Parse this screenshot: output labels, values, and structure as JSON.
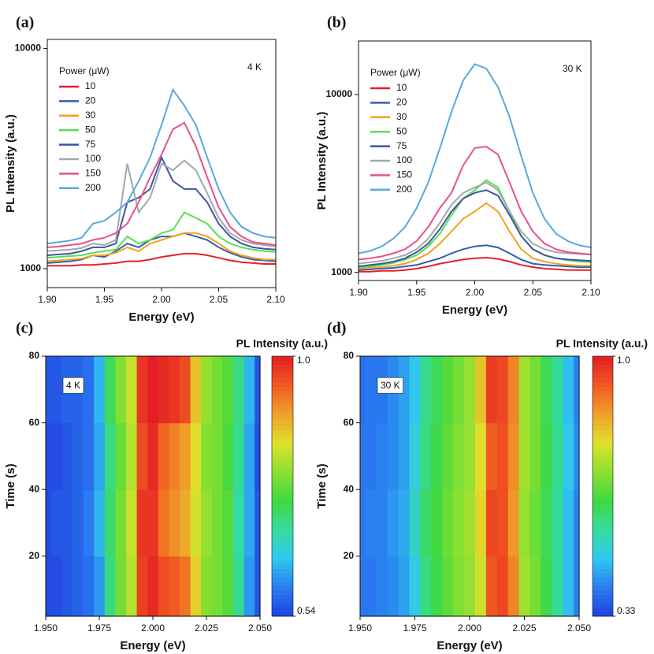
{
  "chart_data": [
    {
      "type": "line",
      "panel_label": "(a)",
      "xlabel": "Energy (eV)",
      "ylabel": "PL Intensity (a.u.)",
      "annotation": "4 K",
      "log": true,
      "legend_title": "Power (μW)",
      "xlim": [
        1.9,
        2.1
      ],
      "xticks": [
        {
          "value": 1.9,
          "label": "1.90"
        },
        1.95,
        {
          "value": 2.0,
          "label": "2.00"
        },
        2.05,
        {
          "value": 2.1,
          "label": "2.10"
        }
      ],
      "ylim": [
        820,
        11000
      ],
      "yticks": [
        1000,
        10000
      ],
      "x": [
        1.9,
        1.91,
        1.92,
        1.93,
        1.94,
        1.95,
        1.96,
        1.97,
        1.98,
        1.99,
        2.0,
        2.01,
        2.02,
        2.03,
        2.04,
        2.05,
        2.06,
        2.07,
        2.08,
        2.09,
        2.1
      ],
      "series": [
        {
          "name": "10",
          "color": "#e8202a",
          "values": [
            1030,
            1030,
            1030,
            1040,
            1040,
            1050,
            1060,
            1080,
            1080,
            1100,
            1130,
            1150,
            1170,
            1170,
            1150,
            1120,
            1090,
            1070,
            1060,
            1050,
            1050
          ]
        },
        {
          "name": "20",
          "color": "#2f5fb0",
          "values": [
            1060,
            1070,
            1080,
            1100,
            1150,
            1130,
            1200,
            1300,
            1250,
            1350,
            1400,
            1400,
            1450,
            1400,
            1350,
            1250,
            1180,
            1130,
            1100,
            1090,
            1080
          ]
        },
        {
          "name": "30",
          "color": "#f5a020",
          "values": [
            1080,
            1090,
            1100,
            1110,
            1150,
            1150,
            1180,
            1250,
            1200,
            1300,
            1350,
            1400,
            1450,
            1450,
            1400,
            1300,
            1200,
            1150,
            1120,
            1100,
            1100
          ]
        },
        {
          "name": "50",
          "color": "#55e050",
          "values": [
            1120,
            1130,
            1140,
            1150,
            1180,
            1200,
            1220,
            1400,
            1300,
            1350,
            1450,
            1500,
            1800,
            1700,
            1600,
            1400,
            1300,
            1250,
            1220,
            1200,
            1190
          ]
        },
        {
          "name": "75",
          "color": "#4055a0",
          "values": [
            1150,
            1160,
            1170,
            1200,
            1250,
            1250,
            1300,
            2000,
            2100,
            2300,
            3200,
            2500,
            2300,
            2300,
            2000,
            1600,
            1400,
            1300,
            1250,
            1230,
            1220
          ]
        },
        {
          "name": "100",
          "color": "#a0aaa8",
          "values": [
            1200,
            1210,
            1220,
            1240,
            1300,
            1280,
            1350,
            3000,
            1800,
            2100,
            3000,
            2800,
            3100,
            2800,
            2200,
            1700,
            1450,
            1350,
            1300,
            1280,
            1260
          ]
        },
        {
          "name": "150",
          "color": "#e8508a",
          "values": [
            1250,
            1260,
            1280,
            1300,
            1350,
            1380,
            1450,
            1600,
            2000,
            2600,
            3300,
            4300,
            4600,
            3600,
            2600,
            1900,
            1550,
            1400,
            1320,
            1300,
            1280
          ]
        },
        {
          "name": "200",
          "color": "#5aa8dc",
          "values": [
            1300,
            1320,
            1340,
            1380,
            1600,
            1650,
            1800,
            2000,
            2500,
            3200,
            4500,
            6500,
            5500,
            4500,
            3200,
            2300,
            1800,
            1550,
            1450,
            1400,
            1380
          ]
        }
      ]
    },
    {
      "type": "line",
      "panel_label": "(b)",
      "xlabel": "Energy (eV)",
      "ylabel": "PL Intensity (a.u.)",
      "annotation": "30 K",
      "log": true,
      "legend_title": "Power (μW)",
      "xlim": [
        1.9,
        2.1
      ],
      "xticks": [
        {
          "value": 1.9,
          "label": "1.90"
        },
        1.95,
        {
          "value": 2.0,
          "label": "2.00"
        },
        2.05,
        {
          "value": 2.1,
          "label": "2.10"
        }
      ],
      "ylim": [
        900,
        20000
      ],
      "yticks": [
        1000,
        10000
      ],
      "x": [
        1.9,
        1.91,
        1.92,
        1.93,
        1.94,
        1.95,
        1.96,
        1.97,
        1.98,
        1.99,
        2.0,
        2.01,
        2.02,
        2.03,
        2.04,
        2.05,
        2.06,
        2.07,
        2.08,
        2.09,
        2.1
      ],
      "series": [
        {
          "name": "10",
          "color": "#e8202a",
          "values": [
            1010,
            1010,
            1020,
            1020,
            1030,
            1050,
            1080,
            1120,
            1150,
            1180,
            1200,
            1210,
            1190,
            1150,
            1100,
            1070,
            1050,
            1040,
            1030,
            1030,
            1030
          ]
        },
        {
          "name": "20",
          "color": "#2f5fb0",
          "values": [
            1030,
            1040,
            1050,
            1060,
            1080,
            1100,
            1150,
            1200,
            1280,
            1350,
            1400,
            1420,
            1380,
            1280,
            1180,
            1120,
            1100,
            1090,
            1080,
            1070,
            1070
          ]
        },
        {
          "name": "30",
          "color": "#f5a020",
          "values": [
            1050,
            1060,
            1070,
            1090,
            1120,
            1180,
            1280,
            1450,
            1700,
            2000,
            2200,
            2450,
            2200,
            1700,
            1350,
            1200,
            1150,
            1120,
            1100,
            1090,
            1090
          ]
        },
        {
          "name": "50",
          "color": "#55e050",
          "values": [
            1070,
            1080,
            1100,
            1130,
            1180,
            1250,
            1400,
            1650,
            2100,
            2600,
            2900,
            3300,
            3000,
            2200,
            1600,
            1350,
            1250,
            1200,
            1170,
            1150,
            1140
          ]
        },
        {
          "name": "75",
          "color": "#4055a0",
          "values": [
            1080,
            1100,
            1120,
            1150,
            1200,
            1300,
            1450,
            1750,
            2200,
            2600,
            2800,
            2900,
            2700,
            2100,
            1600,
            1350,
            1250,
            1200,
            1180,
            1170,
            1160
          ]
        },
        {
          "name": "100",
          "color": "#a0aaa8",
          "values": [
            1120,
            1140,
            1160,
            1200,
            1250,
            1350,
            1550,
            1900,
            2400,
            2800,
            3000,
            3200,
            2900,
            2200,
            1700,
            1450,
            1350,
            1300,
            1280,
            1270,
            1260
          ]
        },
        {
          "name": "150",
          "color": "#e8508a",
          "values": [
            1180,
            1200,
            1230,
            1280,
            1350,
            1500,
            1800,
            2300,
            2800,
            4000,
            5000,
            5100,
            4600,
            3200,
            2200,
            1700,
            1450,
            1350,
            1300,
            1280,
            1260
          ]
        },
        {
          "name": "200",
          "color": "#5aa8dc",
          "values": [
            1280,
            1320,
            1400,
            1550,
            1800,
            2300,
            3200,
            5000,
            8000,
            12000,
            14800,
            14000,
            11000,
            7500,
            4500,
            2800,
            2000,
            1650,
            1500,
            1420,
            1380
          ]
        }
      ]
    },
    {
      "type": "heatmap",
      "panel_label": "(c)",
      "xlabel": "Energy (eV)",
      "ylabel": "Time (s)",
      "annotation": "4 K",
      "colorbar_title": "PL Intensity (a.u.)",
      "xlim": [
        1.95,
        2.05
      ],
      "xticks": [
        {
          "value": 1.95,
          "label": "1.950"
        },
        1.975,
        {
          "value": 2.0,
          "label": "2.000"
        },
        2.025,
        {
          "value": 2.05,
          "label": "2.050"
        }
      ],
      "ylim": [
        2,
        80
      ],
      "yticks": [
        20,
        40,
        60,
        80
      ],
      "zlim": [
        0.54,
        1.0
      ],
      "zticks": [
        0.54,
        {
          "value": 1.0,
          "label": "1.0"
        }
      ],
      "colormap": [
        "#2040e0",
        "#2a7cf0",
        "#30c8f0",
        "#34dca0",
        "#40d840",
        "#8ce030",
        "#e0e02c",
        "#f0a028",
        "#f05a22",
        "#e41e24"
      ],
      "x": [
        1.95,
        1.955,
        1.96,
        1.965,
        1.97,
        1.975,
        1.98,
        1.985,
        1.99,
        1.995,
        2.0,
        2.005,
        2.01,
        2.015,
        2.02,
        2.025,
        2.03,
        2.035,
        2.04,
        2.045,
        2.05
      ],
      "y_bins": [
        2,
        20,
        40,
        60,
        80
      ],
      "z": [
        [
          0.55,
          0.55,
          0.56,
          0.57,
          0.58,
          0.61,
          0.71,
          0.78,
          0.82,
          0.97,
          0.99,
          0.96,
          0.95,
          0.93,
          0.86,
          0.79,
          0.78,
          0.76,
          0.7,
          0.61,
          0.56
        ],
        [
          0.55,
          0.56,
          0.56,
          0.57,
          0.59,
          0.63,
          0.72,
          0.78,
          0.83,
          0.98,
          0.98,
          0.93,
          0.91,
          0.89,
          0.84,
          0.8,
          0.78,
          0.76,
          0.69,
          0.62,
          0.56
        ],
        [
          0.55,
          0.55,
          0.56,
          0.57,
          0.58,
          0.62,
          0.71,
          0.77,
          0.82,
          0.96,
          0.99,
          0.94,
          0.92,
          0.9,
          0.85,
          0.79,
          0.78,
          0.75,
          0.7,
          0.62,
          0.55
        ],
        [
          0.56,
          0.56,
          0.57,
          0.57,
          0.58,
          0.63,
          0.73,
          0.79,
          0.83,
          0.98,
          1.0,
          0.99,
          0.98,
          0.96,
          0.87,
          0.8,
          0.78,
          0.76,
          0.71,
          0.63,
          0.56
        ]
      ]
    },
    {
      "type": "heatmap",
      "panel_label": "(d)",
      "xlabel": "Energy (eV)",
      "ylabel": "Time (s)",
      "annotation": "30 K",
      "colorbar_title": "PL Intensity (a.u.)",
      "xlim": [
        1.95,
        2.05
      ],
      "xticks": [
        {
          "value": 1.95,
          "label": "1.950"
        },
        1.975,
        {
          "value": 2.0,
          "label": "2.000"
        },
        2.025,
        {
          "value": 2.05,
          "label": "2.050"
        }
      ],
      "ylim": [
        2,
        80
      ],
      "yticks": [
        20,
        40,
        60,
        80
      ],
      "zlim": [
        0.33,
        1.0
      ],
      "zticks": [
        0.33,
        {
          "value": 1.0,
          "label": "1.0"
        }
      ],
      "colormap": [
        "#2040e0",
        "#2a7cf0",
        "#30c8f0",
        "#34dca0",
        "#40d840",
        "#8ce030",
        "#e0e02c",
        "#f0a028",
        "#f05a22",
        "#e41e24"
      ],
      "x": [
        1.95,
        1.955,
        1.96,
        1.965,
        1.97,
        1.975,
        1.98,
        1.985,
        1.99,
        1.995,
        2.0,
        2.005,
        2.01,
        2.015,
        2.02,
        2.025,
        2.03,
        2.035,
        2.04,
        2.045,
        2.05
      ],
      "y_bins": [
        2,
        20,
        40,
        60,
        80
      ],
      "z": [
        [
          0.4,
          0.4,
          0.41,
          0.42,
          0.44,
          0.49,
          0.58,
          0.62,
          0.66,
          0.69,
          0.71,
          0.76,
          0.93,
          0.95,
          0.88,
          0.72,
          0.68,
          0.62,
          0.56,
          0.47,
          0.41
        ],
        [
          0.4,
          0.41,
          0.41,
          0.43,
          0.45,
          0.52,
          0.6,
          0.63,
          0.67,
          0.7,
          0.72,
          0.79,
          0.95,
          0.94,
          0.86,
          0.71,
          0.67,
          0.61,
          0.56,
          0.47,
          0.41
        ],
        [
          0.4,
          0.4,
          0.41,
          0.42,
          0.44,
          0.5,
          0.58,
          0.62,
          0.66,
          0.69,
          0.71,
          0.78,
          0.92,
          0.94,
          0.87,
          0.72,
          0.68,
          0.62,
          0.57,
          0.48,
          0.42
        ],
        [
          0.39,
          0.4,
          0.4,
          0.42,
          0.44,
          0.48,
          0.57,
          0.61,
          0.65,
          0.68,
          0.71,
          0.81,
          0.96,
          0.95,
          0.88,
          0.72,
          0.68,
          0.61,
          0.56,
          0.47,
          0.41
        ]
      ]
    }
  ]
}
